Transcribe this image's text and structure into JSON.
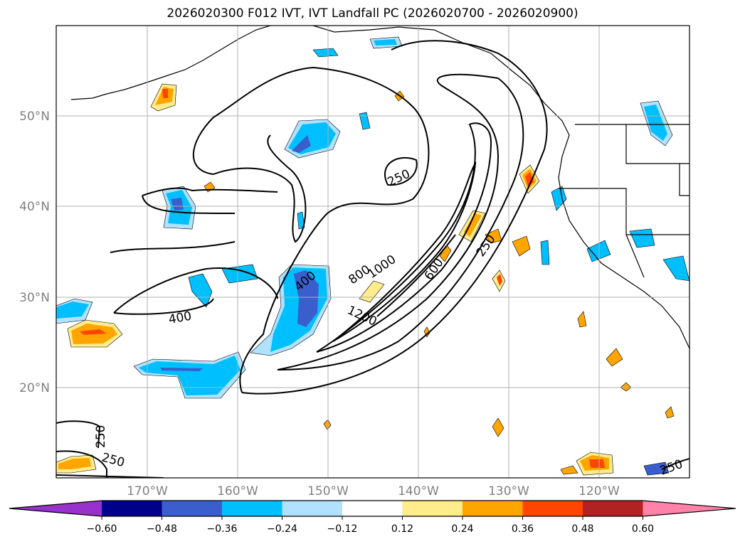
{
  "title": "2026020300 F012 IVT, IVT Landfall PC (2026020700 - 2026020900)",
  "lat_labels": [
    "50°N",
    "40°N",
    "30°N",
    "20°N"
  ],
  "lon_labels": [
    "170°W",
    "160°W",
    "150°W",
    "140°W",
    "130°W",
    "120°W"
  ],
  "contour_labels": [
    "250",
    "400",
    "800",
    "1000",
    "1200",
    "600",
    "250",
    "400",
    "250",
    "250",
    "250"
  ],
  "colorbar": {
    "ticks": [
      "−0.60",
      "−0.48",
      "−0.36",
      "−0.24",
      "−0.12",
      "0.12",
      "0.24",
      "0.36",
      "0.48",
      "0.60"
    ],
    "colors": [
      "#9932CC",
      "#00008B",
      "#3A5FCD",
      "#00BFFF",
      "#B0E2FF",
      "#FFFFFF",
      "#FFEC8B",
      "#FFA500",
      "#FF4500",
      "#B22222",
      "#FF82AB"
    ]
  }
}
